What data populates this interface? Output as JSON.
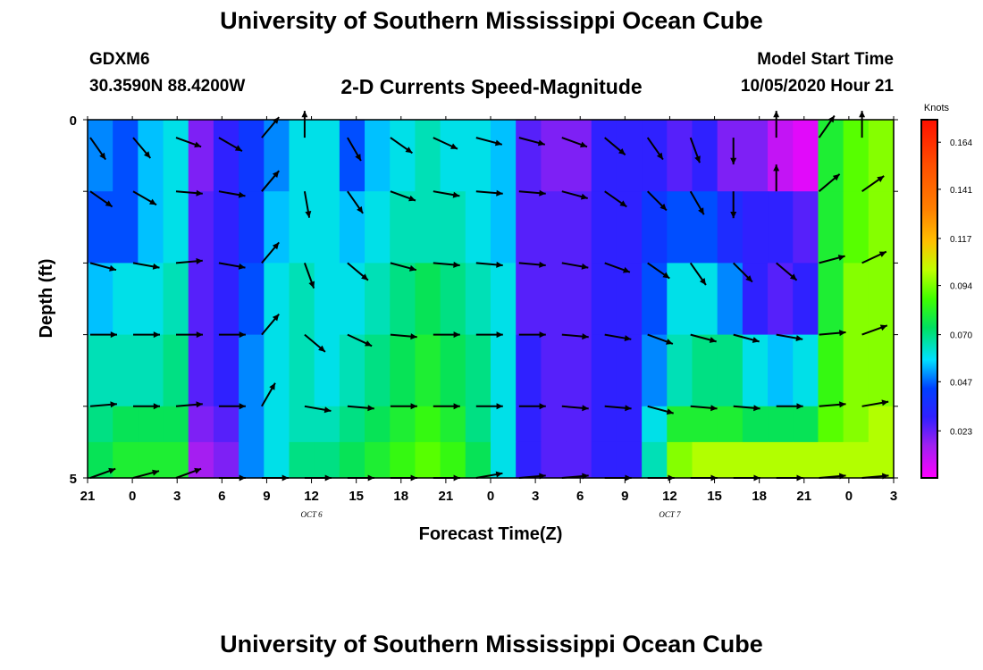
{
  "header": {
    "title": "University of Southern Mississippi Ocean Cube",
    "station": "GDXM6",
    "coords": "30.3590N 88.4200W",
    "subtitle": "2-D Currents Speed-Magnitude",
    "start_label": "Model Start Time",
    "start_value": "10/05/2020 Hour 21"
  },
  "footer": {
    "title": "University of Southern Mississippi Ocean Cube"
  },
  "chart_data": {
    "type": "heatmap",
    "xlabel": "Forecast Time(Z)",
    "ylabel": "Depth (ft)",
    "x_tick_labels": [
      "21",
      "0",
      "3",
      "6",
      "9",
      "12",
      "15",
      "18",
      "21",
      "0",
      "3",
      "6",
      "9",
      "12",
      "15",
      "18",
      "21",
      "0",
      "3"
    ],
    "day_labels": [
      {
        "label": "OCT 6",
        "tick_index": 5
      },
      {
        "label": "OCT 7",
        "tick_index": 13
      }
    ],
    "y_tick_labels": [
      "0",
      "5"
    ],
    "ylim": [
      0,
      5
    ],
    "xlim_hours": [
      0,
      54
    ],
    "colorbar": {
      "title": "Knots",
      "ticks": [
        "0.164",
        "0.141",
        "0.117",
        "0.094",
        "0.070",
        "0.047",
        "0.023"
      ],
      "range": [
        0,
        0.175
      ]
    },
    "layers": [
      {
        "depth": 0.5,
        "speed": [
          0.05,
          0.045,
          0.055,
          0.06,
          0.02,
          0.03,
          0.04,
          0.05,
          0.06,
          0.06,
          0.045,
          0.055,
          0.06,
          0.065,
          0.06,
          0.06,
          0.055,
          0.025,
          0.02,
          0.02,
          0.03,
          0.03,
          0.03,
          0.025,
          0.03,
          0.02,
          0.02,
          0.01,
          0.005,
          0.08,
          0.09,
          0.095
        ]
      },
      {
        "depth": 1.5,
        "speed": [
          0.045,
          0.045,
          0.055,
          0.06,
          0.025,
          0.03,
          0.04,
          0.055,
          0.06,
          0.06,
          0.055,
          0.06,
          0.065,
          0.065,
          0.065,
          0.06,
          0.055,
          0.025,
          0.025,
          0.025,
          0.03,
          0.03,
          0.04,
          0.045,
          0.045,
          0.035,
          0.03,
          0.03,
          0.025,
          0.08,
          0.09,
          0.095
        ]
      },
      {
        "depth": 2.5,
        "speed": [
          0.055,
          0.06,
          0.06,
          0.065,
          0.025,
          0.03,
          0.045,
          0.06,
          0.065,
          0.06,
          0.06,
          0.065,
          0.07,
          0.075,
          0.07,
          0.065,
          0.06,
          0.025,
          0.025,
          0.025,
          0.03,
          0.03,
          0.045,
          0.06,
          0.06,
          0.05,
          0.03,
          0.025,
          0.03,
          0.08,
          0.095,
          0.095
        ]
      },
      {
        "depth": 3.5,
        "speed": [
          0.065,
          0.065,
          0.065,
          0.07,
          0.025,
          0.03,
          0.05,
          0.06,
          0.065,
          0.06,
          0.065,
          0.07,
          0.075,
          0.08,
          0.075,
          0.07,
          0.06,
          0.03,
          0.025,
          0.025,
          0.03,
          0.03,
          0.05,
          0.065,
          0.07,
          0.07,
          0.06,
          0.055,
          0.06,
          0.085,
          0.095,
          0.095
        ]
      },
      {
        "depth": 4.5,
        "speed": [
          0.07,
          0.075,
          0.075,
          0.075,
          0.02,
          0.025,
          0.05,
          0.06,
          0.065,
          0.065,
          0.07,
          0.075,
          0.08,
          0.085,
          0.08,
          0.07,
          0.06,
          0.03,
          0.025,
          0.025,
          0.03,
          0.03,
          0.06,
          0.08,
          0.08,
          0.08,
          0.075,
          0.075,
          0.075,
          0.09,
          0.095,
          0.1
        ]
      },
      {
        "depth": 5.0,
        "speed": [
          0.075,
          0.08,
          0.08,
          0.08,
          0.015,
          0.02,
          0.05,
          0.06,
          0.07,
          0.07,
          0.075,
          0.08,
          0.085,
          0.09,
          0.085,
          0.075,
          0.06,
          0.03,
          0.025,
          0.025,
          0.03,
          0.03,
          0.065,
          0.095,
          0.1,
          0.1,
          0.1,
          0.1,
          0.1,
          0.1,
          0.1,
          0.1
        ]
      }
    ],
    "vector_rows": [
      {
        "depth": 0.25,
        "angles_deg": [
          55,
          50,
          20,
          30,
          -50,
          -90,
          60,
          35,
          25,
          15,
          15,
          20,
          40,
          55,
          70,
          90,
          -90,
          -55,
          -90
        ]
      },
      {
        "depth": 1.0,
        "angles_deg": [
          35,
          30,
          5,
          10,
          -50,
          80,
          55,
          20,
          10,
          5,
          5,
          15,
          35,
          45,
          60,
          90,
          -90,
          -40,
          -35
        ]
      },
      {
        "depth": 2.0,
        "angles_deg": [
          15,
          10,
          -5,
          10,
          -50,
          70,
          40,
          15,
          5,
          5,
          5,
          10,
          20,
          35,
          55,
          45,
          40,
          -15,
          -25
        ]
      },
      {
        "depth": 3.0,
        "angles_deg": [
          0,
          0,
          0,
          0,
          -50,
          40,
          25,
          5,
          0,
          0,
          0,
          5,
          10,
          20,
          15,
          15,
          10,
          -5,
          -20
        ]
      },
      {
        "depth": 4.0,
        "angles_deg": [
          -5,
          0,
          -5,
          0,
          -60,
          10,
          5,
          0,
          0,
          0,
          0,
          5,
          5,
          15,
          5,
          5,
          0,
          -5,
          -10
        ]
      },
      {
        "depth": 5.0,
        "angles_deg": [
          -20,
          -15,
          -20,
          0,
          0,
          0,
          0,
          0,
          0,
          -10,
          -5,
          -5,
          0,
          0,
          0,
          0,
          0,
          -5,
          -5
        ]
      }
    ]
  }
}
